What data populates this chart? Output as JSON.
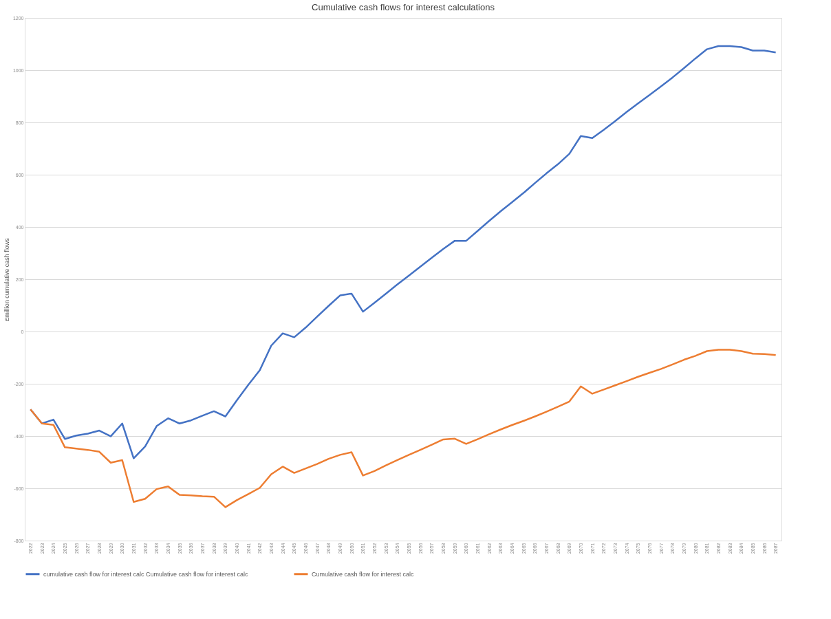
{
  "chart_data": {
    "type": "line",
    "title": "Cumulative cash flows for interest calculations",
    "ylabel": "£million cumulative cash flows",
    "categories": [
      "2022",
      "2023",
      "2024",
      "2025",
      "2026",
      "2027",
      "2028",
      "2029",
      "2030",
      "2031",
      "2032",
      "2033",
      "2034",
      "2035",
      "2036",
      "2037",
      "2038",
      "2039",
      "2040",
      "2041",
      "2042",
      "2043",
      "2044",
      "2045",
      "2046",
      "2047",
      "2048",
      "2049",
      "2050",
      "2051",
      "2052",
      "2053",
      "2054",
      "2055",
      "2056",
      "2057",
      "2058",
      "2059",
      "2060",
      "2061",
      "2062",
      "2063",
      "2064",
      "2065",
      "2066",
      "2067",
      "2068",
      "2069",
      "2070",
      "2071",
      "2072",
      "2073",
      "2074",
      "2075",
      "2076",
      "2077",
      "2078",
      "2079",
      "2080",
      "2081",
      "2082",
      "2083",
      "2084",
      "2085",
      "2086",
      "2087"
    ],
    "series": [
      {
        "name": "cumulative cash flow for interest calc Cumulative cash flow for interest calc",
        "color": "#4472c4",
        "values": [
          -298,
          -352,
          -337,
          -411,
          -398,
          -391,
          -379,
          -401,
          -352,
          -485,
          -440,
          -362,
          -332,
          -352,
          -340,
          -322,
          -305,
          -325,
          -263,
          -204,
          -148,
          -54,
          -7,
          -22,
          15,
          57,
          98,
          138,
          145,
          76,
          110,
          145,
          180,
          214,
          248,
          282,
          316,
          347,
          347,
          385,
          423,
          460,
          495,
          530,
          568,
          605,
          640,
          680,
          748,
          740,
          772,
          805,
          840,
          873,
          905,
          938,
          972,
          1008,
          1045,
          1080,
          1092,
          1092,
          1088,
          1075,
          1075,
          1068
        ]
      },
      {
        "name": "Cumulative cash flow for interest calc",
        "color": "#ed7d31",
        "values": [
          -298,
          -352,
          -357,
          -443,
          -448,
          -453,
          -460,
          -502,
          -492,
          -652,
          -640,
          -603,
          -593,
          -625,
          -627,
          -630,
          -632,
          -672,
          -645,
          -622,
          -598,
          -546,
          -517,
          -541,
          -524,
          -507,
          -487,
          -472,
          -462,
          -551,
          -534,
          -512,
          -492,
          -472,
          -453,
          -433,
          -413,
          -410,
          -430,
          -412,
          -393,
          -375,
          -358,
          -342,
          -325,
          -307,
          -288,
          -268,
          -210,
          -238,
          -222,
          -206,
          -190,
          -173,
          -158,
          -143,
          -126,
          -108,
          -93,
          -75,
          -70,
          -70,
          -75,
          -85,
          -86,
          -90
        ]
      }
    ],
    "ylim": [
      -800,
      1200
    ],
    "yticks": [
      -800,
      -600,
      -400,
      -200,
      0,
      200,
      400,
      600,
      800,
      1000,
      1200
    ],
    "grid": "y",
    "legend": "bottom",
    "marker": "none",
    "line_style": "solid"
  }
}
